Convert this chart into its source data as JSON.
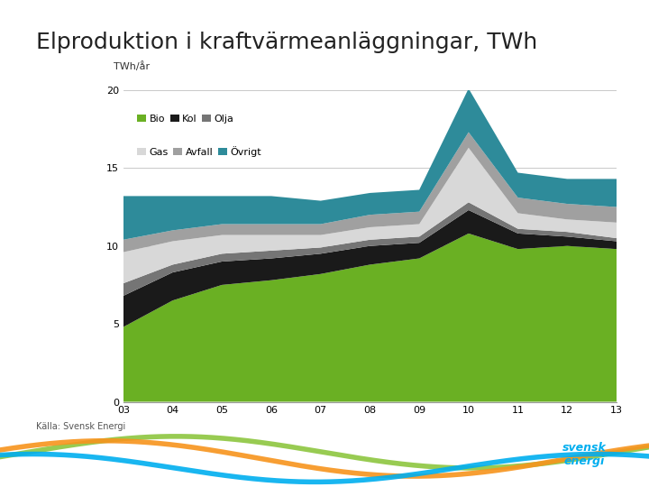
{
  "title": "Elproduktion i kraftvärmeanläggningar, TWh",
  "ylabel": "TWh/år",
  "source": "Källa: Svensk Energi",
  "years": [
    2003,
    2004,
    2005,
    2006,
    2007,
    2008,
    2009,
    2010,
    2011,
    2012,
    2013
  ],
  "x_labels": [
    "03",
    "04",
    "05",
    "06",
    "07",
    "08",
    "09",
    "10",
    "11",
    "12",
    "13"
  ],
  "series": {
    "Bio": [
      4.8,
      6.5,
      7.5,
      7.8,
      8.2,
      8.8,
      9.2,
      10.8,
      9.8,
      10.0,
      9.8
    ],
    "Kol": [
      2.0,
      1.8,
      1.5,
      1.4,
      1.3,
      1.2,
      1.0,
      1.5,
      1.0,
      0.6,
      0.5
    ],
    "Olja": [
      0.8,
      0.5,
      0.5,
      0.5,
      0.4,
      0.4,
      0.4,
      0.5,
      0.3,
      0.3,
      0.2
    ],
    "Gas": [
      2.0,
      1.5,
      1.2,
      1.0,
      0.8,
      0.8,
      0.8,
      3.5,
      1.0,
      0.8,
      1.0
    ],
    "Avfall": [
      0.8,
      0.7,
      0.7,
      0.7,
      0.7,
      0.8,
      0.8,
      1.0,
      1.0,
      1.0,
      1.0
    ],
    "Övrigt": [
      2.8,
      2.2,
      1.8,
      1.8,
      1.5,
      1.4,
      1.4,
      2.8,
      1.6,
      1.6,
      1.8
    ]
  },
  "colors": {
    "Bio": "#6ab023",
    "Kol": "#1a1a1a",
    "Olja": "#757575",
    "Gas": "#d8d8d8",
    "Avfall": "#a0a0a0",
    "Övrigt": "#2e8b9a"
  },
  "ylim": [
    0,
    20
  ],
  "yticks": [
    0,
    5,
    10,
    15,
    20
  ],
  "background_color": "#ffffff",
  "title_fontsize": 18,
  "label_fontsize": 8,
  "wave_colors": [
    "#8dc63f",
    "#f7941d",
    "#00aeef"
  ],
  "logo_text_color": "#00aeef"
}
